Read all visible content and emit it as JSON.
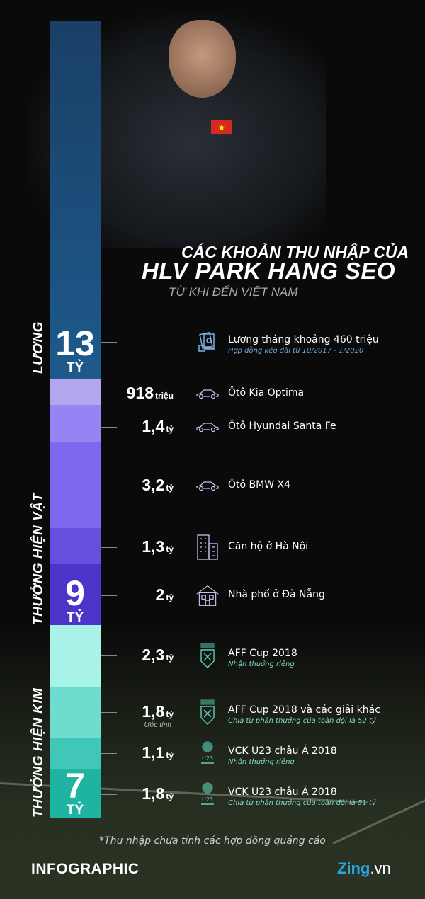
{
  "header": {
    "line1": "CÁC KHOẢN THU NHẬP CỦA",
    "line2": "HLV PARK HANG SEO",
    "line3": "TỪ KHI ĐẾN VIỆT NAM"
  },
  "colors": {
    "luong": "#1d5a8c",
    "hien_vat": [
      "#b3a6ee",
      "#9684f5",
      "#7d68ee",
      "#6450dd",
      "#4a35c8"
    ],
    "hien_kim": [
      "#a8f2e8",
      "#6fdcd0",
      "#40c7b8",
      "#1fb3a2"
    ],
    "teal_text": "#7fd9c8",
    "lavender_text": "#a99bf0",
    "blue_text": "#6fa6d8"
  },
  "chart_data": {
    "type": "bar",
    "stacked": true,
    "orientation": "vertical",
    "unit": "tỷ",
    "groups": [
      {
        "name": "LƯƠNG",
        "total": "13",
        "total_unit": "TỶ",
        "items": [
          {
            "value": 13,
            "label": "",
            "title": "Lương tháng khoảng 460 triệu",
            "subtitle": "Hợp đồng kéo dài từ 10/2017 - 1/2020",
            "icon": "salary-icon"
          }
        ]
      },
      {
        "name": "THƯỞNG HIỆN VẬT",
        "total": "9",
        "total_unit": "TỶ",
        "items": [
          {
            "value": 0.918,
            "label": "918",
            "unit": "triệu",
            "title": "Ôtô Kia Optima",
            "icon": "car-icon"
          },
          {
            "value": 1.4,
            "label": "1,4",
            "unit": "tỷ",
            "title": "Ôtô Hyundai Santa Fe",
            "icon": "car-icon"
          },
          {
            "value": 3.2,
            "label": "3,2",
            "unit": "tỷ",
            "title": "Ôtô BMW X4",
            "icon": "car-icon"
          },
          {
            "value": 1.3,
            "label": "1,3",
            "unit": "tỷ",
            "title": "Căn hộ ở Hà Nội",
            "icon": "apartment-icon"
          },
          {
            "value": 2,
            "label": "2",
            "unit": "tỷ",
            "title": "Nhà phố ở Đà Nẵng",
            "icon": "house-icon"
          }
        ]
      },
      {
        "name": "THƯỞNG HIỆN KIM",
        "total": "7",
        "total_unit": "TỶ",
        "items": [
          {
            "value": 2.3,
            "label": "2,3",
            "unit": "tỷ",
            "title": "AFF Cup 2018",
            "subtitle": "Nhận thưởng riêng",
            "icon": "aff-cup-logo-icon"
          },
          {
            "value": 1.8,
            "label": "1,8",
            "unit": "tỷ",
            "note": "Ước tính",
            "title": "AFF Cup 2018 và các giải khác",
            "subtitle": "Chia từ phần thưởng của toàn đội là 52 tỷ",
            "icon": "aff-cup-logo-icon"
          },
          {
            "value": 1.1,
            "label": "1,1",
            "unit": "tỷ",
            "title": "VCK U23 châu Á 2018",
            "subtitle": "Nhận thưởng riêng",
            "icon": "u23-logo-icon"
          },
          {
            "value": 1.8,
            "label": "1,8",
            "unit": "tỷ",
            "title": "VCK U23 châu Á 2018",
            "subtitle": "Chia từ phần thưởng của toàn đội là 51 tỷ",
            "icon": "u23-logo-icon"
          }
        ]
      }
    ]
  },
  "footer": {
    "note": "*Thu nhập chưa tính các hợp đồng quảng cáo",
    "brand": "INFOGRAPHIC",
    "logo_main": "Zing",
    "logo_suffix": ".vn"
  }
}
